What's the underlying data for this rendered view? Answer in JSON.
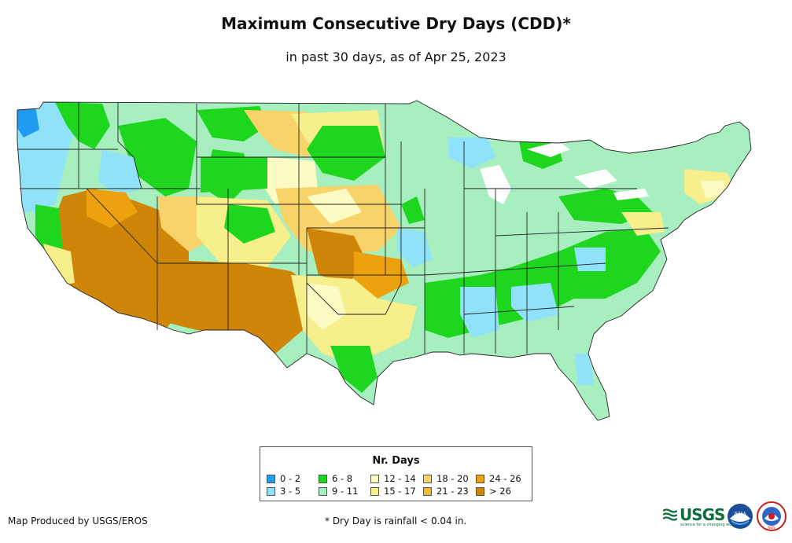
{
  "title": "Maximum Consecutive Dry Days (CDD)*",
  "subtitle": "in past 30 days, as of Apr 25, 2023",
  "legend": {
    "title": "Nr. Days",
    "items": [
      {
        "label": "0 - 2",
        "color": "#1f9cf0"
      },
      {
        "label": "3 - 5",
        "color": "#8fe2f7"
      },
      {
        "label": "6 - 8",
        "color": "#1ed61e"
      },
      {
        "label": "9 - 11",
        "color": "#a8efc0"
      },
      {
        "label": "12 - 14",
        "color": "#fdfbc4"
      },
      {
        "label": "15 - 17",
        "color": "#f6ef8c"
      },
      {
        "label": "18 - 20",
        "color": "#f7d36a"
      },
      {
        "label": "21 - 23",
        "color": "#f1bb2b"
      },
      {
        "label": "24 - 26",
        "color": "#eea10f"
      },
      {
        "label": "> 26",
        "color": "#cf8508"
      }
    ]
  },
  "footer": {
    "credit": "Map Produced by USGS/EROS",
    "note": "* Dry Day is rainfall < 0.04 in."
  },
  "logos": {
    "usgs_text": "USGS",
    "usgs_tagline": "science for a changing world",
    "noaa_text": "NOAA",
    "nws_text": "NWS"
  },
  "colors": {
    "state_border": "#222222",
    "background": "#ffffff"
  }
}
